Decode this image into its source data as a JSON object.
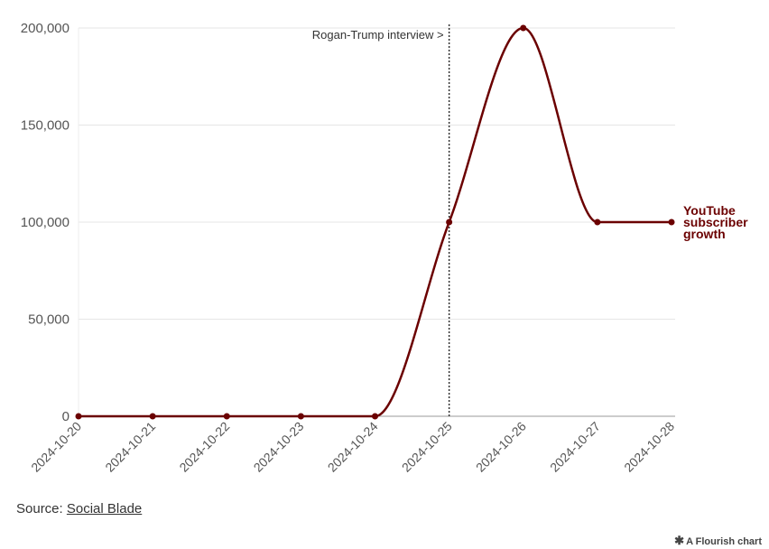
{
  "chart_data": {
    "type": "line",
    "x": [
      "2024-10-20",
      "2024-10-21",
      "2024-10-22",
      "2024-10-23",
      "2024-10-24",
      "2024-10-25",
      "2024-10-26",
      "2024-10-27",
      "2024-10-28"
    ],
    "series": [
      {
        "name": "YouTube subscriber growth",
        "values": [
          0,
          0,
          0,
          0,
          0,
          100000,
          200000,
          100000,
          100000
        ]
      }
    ],
    "ylim": [
      0,
      200000
    ],
    "y_ticks": [
      "0",
      "50,000",
      "100,000",
      "150,000",
      "200,000"
    ],
    "y_tick_values": [
      0,
      50000,
      100000,
      150000,
      200000
    ],
    "grid": true,
    "line_color": "#6b0000",
    "annotation": {
      "x": "2024-10-25",
      "text": "Rogan-Trump interview >"
    },
    "series_label_lines": [
      "YouTube",
      "subscriber",
      "growth"
    ]
  },
  "source": {
    "prefix": "Source: ",
    "link_text": "Social Blade"
  },
  "credit": {
    "star": "✱",
    "text": "A Flourish chart"
  }
}
